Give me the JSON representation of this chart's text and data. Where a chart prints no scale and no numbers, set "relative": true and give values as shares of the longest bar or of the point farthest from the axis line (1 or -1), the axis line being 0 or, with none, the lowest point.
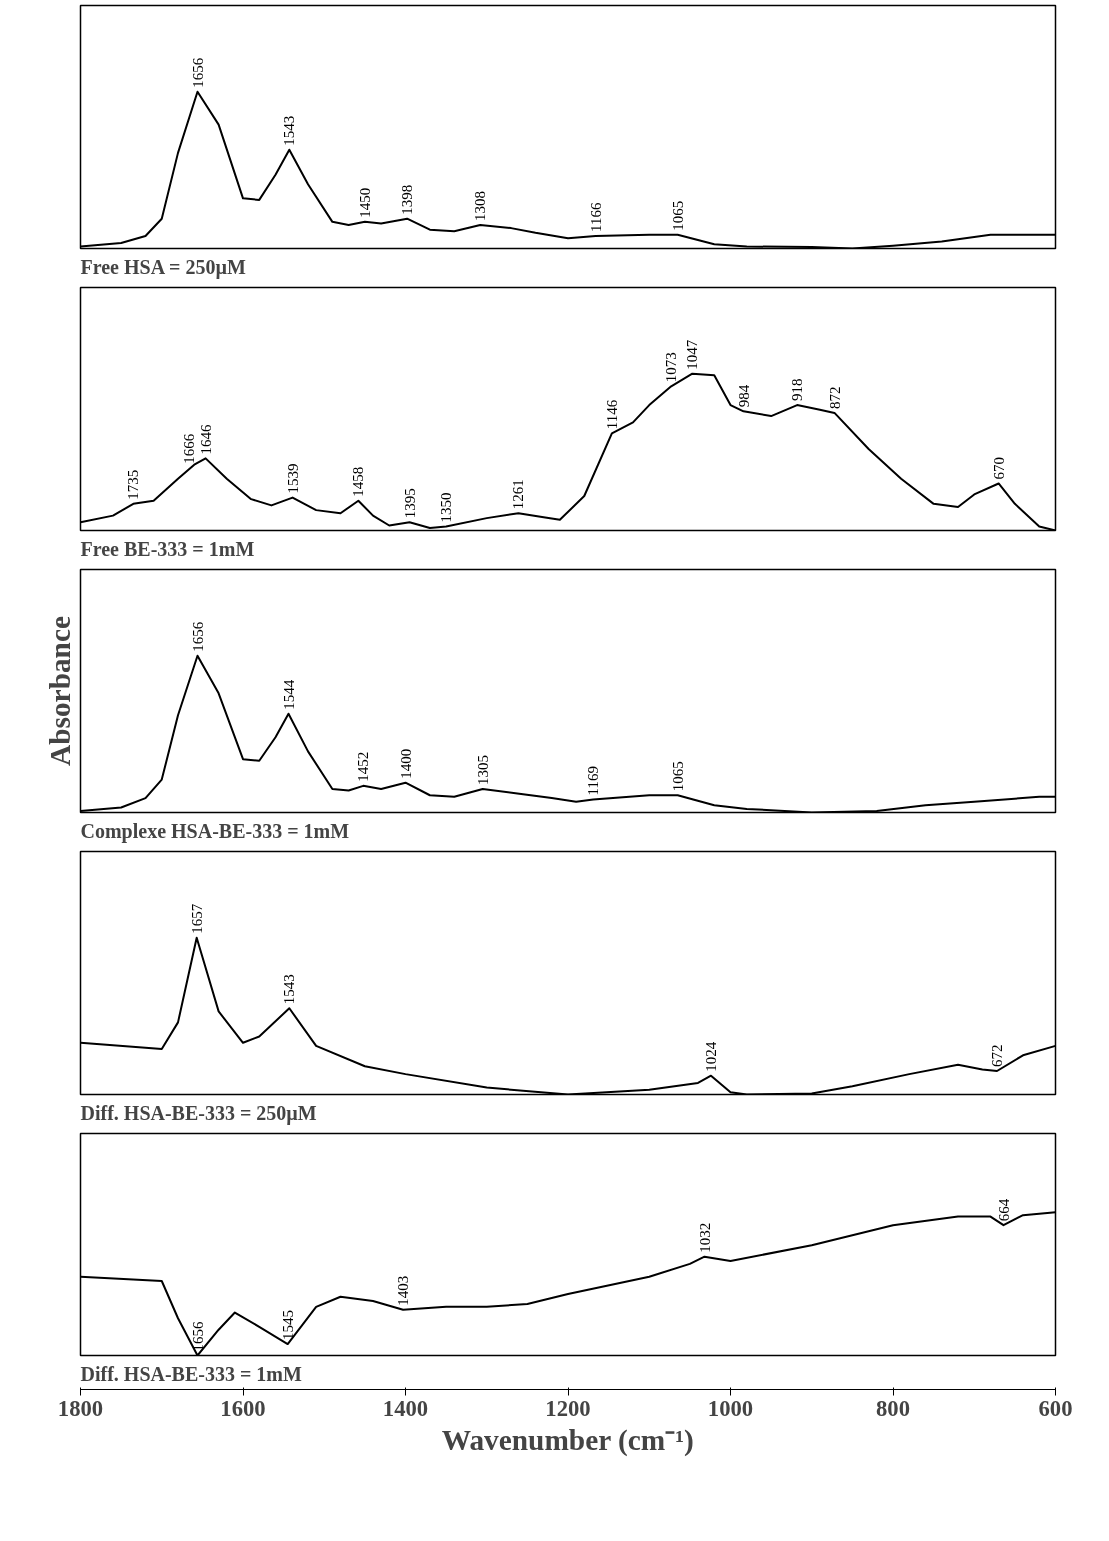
{
  "chart_data": [
    {
      "type": "line",
      "title": "Free HSA = 250µM",
      "relative": true,
      "xlim": [
        1800,
        600
      ],
      "tick_labels": false,
      "grid": false,
      "color": "#000000",
      "x": [
        1800,
        1750,
        1720,
        1700,
        1680,
        1656,
        1630,
        1600,
        1580,
        1560,
        1543,
        1520,
        1490,
        1470,
        1450,
        1430,
        1398,
        1370,
        1340,
        1308,
        1270,
        1240,
        1200,
        1166,
        1100,
        1065,
        1020,
        980,
        900,
        850,
        800,
        740,
        680,
        600
      ],
      "values": [
        0.013,
        0.035,
        0.08,
        0.19,
        0.61,
        1,
        0.79,
        0.32,
        0.31,
        0.47,
        0.63,
        0.41,
        0.17,
        0.15,
        0.17,
        0.16,
        0.19,
        0.12,
        0.11,
        0.15,
        0.13,
        0.1,
        0.066,
        0.08,
        0.088,
        0.088,
        0.027,
        0.013,
        0.009,
        0,
        0.018,
        0.044,
        0.088,
        0.088
      ],
      "annotations": [
        {
          "text": "1656",
          "x": 1656,
          "y": 1
        },
        {
          "text": "1543",
          "x": 1543,
          "y": 0.63
        },
        {
          "text": "1450",
          "x": 1450,
          "y": 0.17
        },
        {
          "text": "1398",
          "x": 1398,
          "y": 0.19
        },
        {
          "text": "1308",
          "x": 1308,
          "y": 0.15
        },
        {
          "text": "1166",
          "x": 1166,
          "y": 0.08
        },
        {
          "text": "1065",
          "x": 1065,
          "y": 0.088
        }
      ]
    },
    {
      "type": "line",
      "title": "Free BE-333 = 1mM",
      "relative": true,
      "xlim": [
        1800,
        600
      ],
      "tick_labels": false,
      "grid": false,
      "color": "#000000",
      "x": [
        1800,
        1760,
        1735,
        1710,
        1680,
        1660,
        1646,
        1620,
        1590,
        1565,
        1539,
        1510,
        1480,
        1458,
        1440,
        1420,
        1395,
        1370,
        1350,
        1300,
        1261,
        1230,
        1210,
        1180,
        1146,
        1120,
        1100,
        1073,
        1047,
        1020,
        1000,
        984,
        950,
        918,
        890,
        872,
        830,
        790,
        750,
        720,
        700,
        670,
        650,
        620,
        600
      ],
      "values": [
        0.053,
        0.095,
        0.17,
        0.19,
        0.33,
        0.42,
        0.46,
        0.33,
        0.2,
        0.16,
        0.21,
        0.13,
        0.11,
        0.19,
        0.095,
        0.032,
        0.053,
        0.016,
        0.026,
        0.079,
        0.11,
        0.084,
        0.068,
        0.22,
        0.62,
        0.69,
        0.8,
        0.92,
        1,
        0.99,
        0.8,
        0.76,
        0.73,
        0.8,
        0.77,
        0.75,
        0.52,
        0.33,
        0.17,
        0.15,
        0.23,
        0.3,
        0.17,
        0.026,
        0
      ],
      "annotations": [
        {
          "text": "1735",
          "x": 1735,
          "y": 0.17
        },
        {
          "text": "1666",
          "x": 1666,
          "y": 0.4
        },
        {
          "text": "1646",
          "x": 1646,
          "y": 0.46
        },
        {
          "text": "1539",
          "x": 1539,
          "y": 0.21
        },
        {
          "text": "1458",
          "x": 1458,
          "y": 0.19
        },
        {
          "text": "1395",
          "x": 1395,
          "y": 0.053
        },
        {
          "text": "1350",
          "x": 1350,
          "y": 0.026
        },
        {
          "text": "1261",
          "x": 1261,
          "y": 0.11
        },
        {
          "text": "1146",
          "x": 1146,
          "y": 0.62
        },
        {
          "text": "1073",
          "x": 1073,
          "y": 0.92
        },
        {
          "text": "1047",
          "x": 1047,
          "y": 1
        },
        {
          "text": "984",
          "x": 984,
          "y": 0.76
        },
        {
          "text": "918",
          "x": 918,
          "y": 0.8
        },
        {
          "text": "872",
          "x": 872,
          "y": 0.75
        },
        {
          "text": "670",
          "x": 670,
          "y": 0.3
        }
      ]
    },
    {
      "type": "line",
      "title": "Complexe HSA-BE-333 = 1mM",
      "ylabel": "Absorbance",
      "relative": true,
      "xlim": [
        1800,
        600
      ],
      "tick_labels": false,
      "grid": false,
      "color": "#000000",
      "x": [
        1800,
        1750,
        1720,
        1700,
        1680,
        1656,
        1630,
        1600,
        1580,
        1560,
        1544,
        1520,
        1490,
        1470,
        1452,
        1430,
        1400,
        1370,
        1340,
        1305,
        1260,
        1220,
        1190,
        1169,
        1100,
        1065,
        1020,
        980,
        900,
        820,
        760,
        700,
        620,
        600
      ],
      "values": [
        0.009,
        0.032,
        0.092,
        0.21,
        0.62,
        1,
        0.76,
        0.34,
        0.33,
        0.48,
        0.63,
        0.39,
        0.15,
        0.14,
        0.17,
        0.15,
        0.19,
        0.11,
        0.1,
        0.15,
        0.12,
        0.092,
        0.069,
        0.083,
        0.11,
        0.11,
        0.046,
        0.023,
        0,
        0.009,
        0.046,
        0.069,
        0.1,
        0.1
      ],
      "annotations": [
        {
          "text": "1656",
          "x": 1656,
          "y": 1
        },
        {
          "text": "1544",
          "x": 1544,
          "y": 0.63
        },
        {
          "text": "1452",
          "x": 1452,
          "y": 0.17
        },
        {
          "text": "1400",
          "x": 1400,
          "y": 0.19
        },
        {
          "text": "1305",
          "x": 1305,
          "y": 0.15
        },
        {
          "text": "1169",
          "x": 1169,
          "y": 0.083
        },
        {
          "text": "1065",
          "x": 1065,
          "y": 0.11
        }
      ]
    },
    {
      "type": "line",
      "title": "Diff. HSA-BE-333 = 250µM",
      "relative": true,
      "xlim": [
        1800,
        600
      ],
      "tick_labels": false,
      "grid": false,
      "color": "#000000",
      "x": [
        1800,
        1700,
        1680,
        1657,
        1630,
        1600,
        1580,
        1543,
        1510,
        1450,
        1400,
        1300,
        1200,
        1100,
        1040,
        1024,
        1000,
        980,
        900,
        850,
        780,
        720,
        690,
        672,
        640,
        600
      ],
      "values": [
        0.33,
        0.29,
        0.46,
        1,
        0.53,
        0.33,
        0.37,
        0.55,
        0.31,
        0.18,
        0.13,
        0.044,
        0,
        0.03,
        0.074,
        0.12,
        0.015,
        0,
        0.007,
        0.052,
        0.13,
        0.19,
        0.16,
        0.15,
        0.25,
        0.31
      ],
      "annotations": [
        {
          "text": "1657",
          "x": 1657,
          "y": 1
        },
        {
          "text": "1543",
          "x": 1543,
          "y": 0.55
        },
        {
          "text": "1024",
          "x": 1024,
          "y": 0.12
        },
        {
          "text": "672",
          "x": 672,
          "y": 0.15
        }
      ]
    },
    {
      "type": "line",
      "title": "Diff. HSA-BE-333 = 1mM",
      "xlabel": "Wavenumber (cm⁻¹)",
      "relative": true,
      "xlim": [
        1800,
        600
      ],
      "xticks": [
        1800,
        1600,
        1400,
        1200,
        1000,
        800,
        600
      ],
      "tick_labels": "x",
      "grid": false,
      "color": "#000000",
      "x": [
        1800,
        1700,
        1680,
        1656,
        1630,
        1610,
        1580,
        1545,
        1510,
        1480,
        1440,
        1403,
        1350,
        1300,
        1250,
        1200,
        1100,
        1050,
        1032,
        1000,
        900,
        800,
        720,
        680,
        664,
        640,
        600
      ],
      "values": [
        0.55,
        0.52,
        0.26,
        0,
        0.18,
        0.3,
        0.2,
        0.08,
        0.34,
        0.41,
        0.38,
        0.32,
        0.34,
        0.34,
        0.36,
        0.43,
        0.55,
        0.64,
        0.69,
        0.66,
        0.77,
        0.91,
        0.97,
        0.97,
        0.91,
        0.98,
        1
      ],
      "annotations": [
        {
          "text": "1656",
          "x": 1656,
          "y": 0
        },
        {
          "text": "1545",
          "x": 1545,
          "y": 0.08
        },
        {
          "text": "1403",
          "x": 1403,
          "y": 0.32
        },
        {
          "text": "1032",
          "x": 1032,
          "y": 0.69
        },
        {
          "text": "664",
          "x": 664,
          "y": 0.91
        }
      ]
    }
  ]
}
